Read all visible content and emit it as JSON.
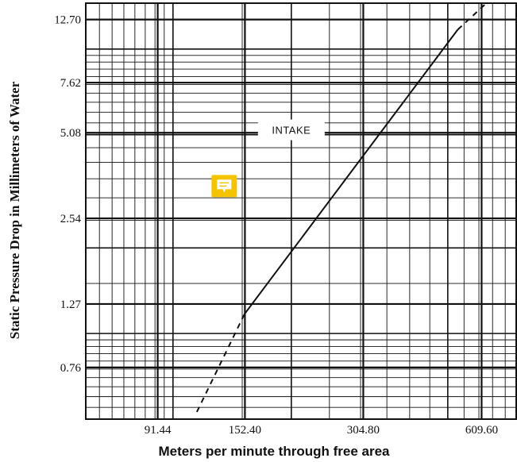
{
  "chart_data": {
    "type": "line",
    "xlabel": "Meters per minute through free area",
    "ylabel": "Static Pressure Drop in Millimeters of Water",
    "x_scale": "log",
    "y_scale": "log",
    "xlim": [
      60,
      750
    ],
    "ylim": [
      0.5,
      14.5
    ],
    "x_ticks": [
      {
        "value": 91.44,
        "label": "91.44"
      },
      {
        "value": 152.4,
        "label": "152.40"
      },
      {
        "value": 304.8,
        "label": "304.80"
      },
      {
        "value": 609.6,
        "label": "609.60"
      }
    ],
    "y_ticks": [
      {
        "value": 12.7,
        "label": "12.70"
      },
      {
        "value": 7.62,
        "label": "7.62"
      },
      {
        "value": 5.08,
        "label": "5.08"
      },
      {
        "value": 2.54,
        "label": "2.54"
      },
      {
        "value": 1.27,
        "label": "1.27"
      },
      {
        "value": 0.76,
        "label": "0.76"
      }
    ],
    "grid": true,
    "series": [
      {
        "name": "INTAKE",
        "points": [
          {
            "x": 115,
            "y": 0.53,
            "style": "dashed"
          },
          {
            "x": 152,
            "y": 1.17,
            "style": "dashed"
          },
          {
            "x": 152,
            "y": 1.17,
            "style": "solid"
          },
          {
            "x": 530,
            "y": 11.7,
            "style": "solid"
          },
          {
            "x": 530,
            "y": 11.7,
            "style": "dashed"
          },
          {
            "x": 620,
            "y": 14.3,
            "style": "dashed"
          }
        ]
      }
    ],
    "annotations": [
      {
        "text": "INTAKE",
        "x": 200,
        "y": 5.2
      }
    ],
    "marker_icon": {
      "name": "comment-icon",
      "color": "#f5c400",
      "x": 135,
      "y": 3.3
    },
    "colors": {
      "line": "#111111",
      "grid": "#111111",
      "marker": "#f5c400"
    }
  }
}
